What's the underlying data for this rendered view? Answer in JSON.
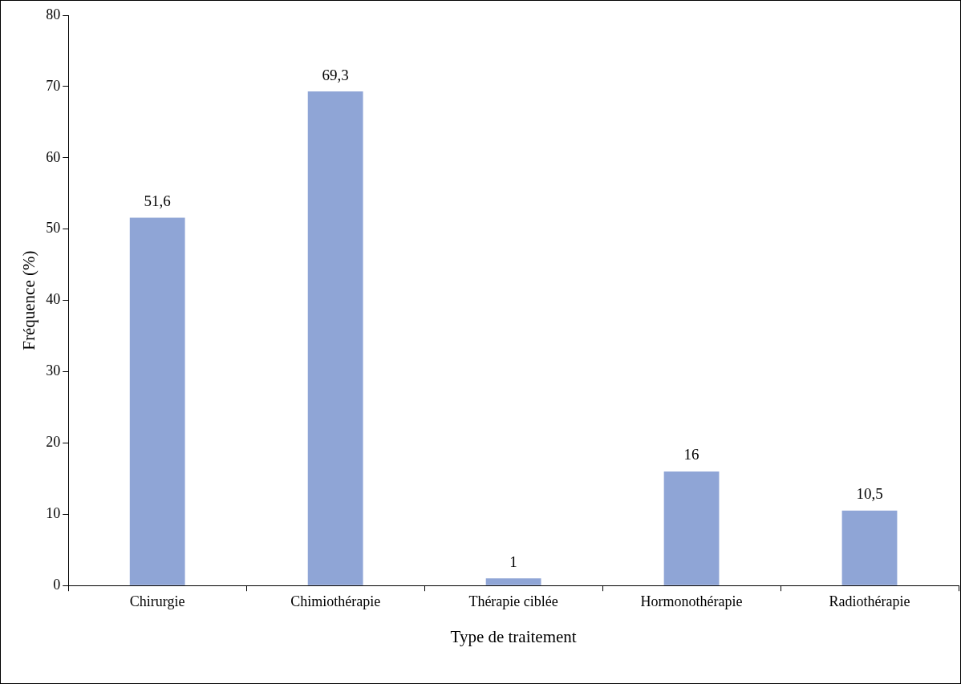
{
  "chart_data": {
    "type": "bar",
    "xlabel": "Type de traitement",
    "ylabel": "Fréquence (%)",
    "categories": [
      "Chirurgie",
      "Chimiothérapie",
      "Thérapie ciblée",
      "Hormonothérapie",
      "Radiothérapie"
    ],
    "values": [
      51.6,
      69.3,
      1,
      16,
      10.5
    ],
    "value_labels": [
      "51,6",
      "69,3",
      "1",
      "16",
      "10,5"
    ],
    "color": "#8fa5d6",
    "ylim": [
      0,
      80
    ],
    "yticks": [
      0,
      10,
      20,
      30,
      40,
      50,
      60,
      70,
      80
    ],
    "grid": false,
    "legend": false
  }
}
